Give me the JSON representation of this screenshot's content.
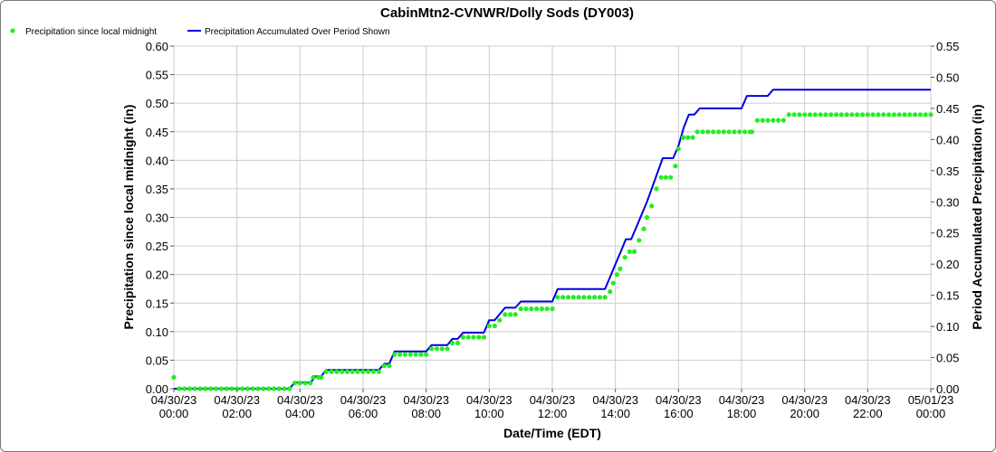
{
  "chart_data": {
    "type": "line",
    "title": "CabinMtn2-CVNWR/Dolly Sods (DY003)",
    "xlabel": "Date/Time (EDT)",
    "ylabel_left": "Precipitation since local midnight (in)",
    "ylabel_right": "Period Accumulated Precipitation (in)",
    "x_range_hours": [
      0,
      24
    ],
    "ylim_left": [
      0,
      0.6
    ],
    "ylim_right": [
      0,
      0.55
    ],
    "grid": true,
    "legend_position": "top-left",
    "x_ticks": [
      {
        "hour": 0,
        "date": "04/30/23",
        "time": "00:00"
      },
      {
        "hour": 2,
        "date": "04/30/23",
        "time": "02:00"
      },
      {
        "hour": 4,
        "date": "04/30/23",
        "time": "04:00"
      },
      {
        "hour": 6,
        "date": "04/30/23",
        "time": "06:00"
      },
      {
        "hour": 8,
        "date": "04/30/23",
        "time": "08:00"
      },
      {
        "hour": 10,
        "date": "04/30/23",
        "time": "10:00"
      },
      {
        "hour": 12,
        "date": "04/30/23",
        "time": "12:00"
      },
      {
        "hour": 14,
        "date": "04/30/23",
        "time": "14:00"
      },
      {
        "hour": 16,
        "date": "04/30/23",
        "time": "16:00"
      },
      {
        "hour": 18,
        "date": "04/30/23",
        "time": "18:00"
      },
      {
        "hour": 20,
        "date": "04/30/23",
        "time": "20:00"
      },
      {
        "hour": 22,
        "date": "04/30/23",
        "time": "22:00"
      },
      {
        "hour": 24,
        "date": "05/01/23",
        "time": "00:00"
      }
    ],
    "y_ticks_left": [
      "0.00",
      "0.05",
      "0.10",
      "0.15",
      "0.20",
      "0.25",
      "0.30",
      "0.35",
      "0.40",
      "0.45",
      "0.50",
      "0.55",
      "0.60"
    ],
    "y_ticks_right": [
      "0.00",
      "0.05",
      "0.10",
      "0.15",
      "0.20",
      "0.25",
      "0.30",
      "0.35",
      "0.40",
      "0.45",
      "0.50",
      "0.55"
    ],
    "series": [
      {
        "name": "Precipitation since local midnight",
        "kind": "scatter",
        "axis": "left",
        "color": "#22ee22",
        "points": [
          [
            0.0,
            0.02
          ],
          [
            0.17,
            0.0
          ],
          [
            3.67,
            0.0
          ],
          [
            3.83,
            0.01
          ],
          [
            4.33,
            0.01
          ],
          [
            4.42,
            0.02
          ],
          [
            4.67,
            0.02
          ],
          [
            4.83,
            0.03
          ],
          [
            6.5,
            0.03
          ],
          [
            6.67,
            0.04
          ],
          [
            6.83,
            0.04
          ],
          [
            7.0,
            0.06
          ],
          [
            8.0,
            0.06
          ],
          [
            8.17,
            0.07
          ],
          [
            8.67,
            0.07
          ],
          [
            8.83,
            0.08
          ],
          [
            9.0,
            0.08
          ],
          [
            9.17,
            0.09
          ],
          [
            9.83,
            0.09
          ],
          [
            10.0,
            0.11
          ],
          [
            10.17,
            0.11
          ],
          [
            10.33,
            0.12
          ],
          [
            10.5,
            0.13
          ],
          [
            10.83,
            0.13
          ],
          [
            11.0,
            0.14
          ],
          [
            12.0,
            0.14
          ],
          [
            12.17,
            0.16
          ],
          [
            13.67,
            0.16
          ],
          [
            13.83,
            0.17
          ],
          [
            13.93,
            0.185
          ],
          [
            14.05,
            0.2
          ],
          [
            14.15,
            0.21
          ],
          [
            14.3,
            0.23
          ],
          [
            14.45,
            0.24
          ],
          [
            14.6,
            0.24
          ],
          [
            14.75,
            0.26
          ],
          [
            14.9,
            0.28
          ],
          [
            15.0,
            0.3
          ],
          [
            15.15,
            0.32
          ],
          [
            15.3,
            0.35
          ],
          [
            15.45,
            0.37
          ],
          [
            15.6,
            0.37
          ],
          [
            15.75,
            0.37
          ],
          [
            15.9,
            0.39
          ],
          [
            16.0,
            0.42
          ],
          [
            16.15,
            0.44
          ],
          [
            16.3,
            0.44
          ],
          [
            16.45,
            0.44
          ],
          [
            16.6,
            0.45
          ],
          [
            18.33,
            0.45
          ],
          [
            18.5,
            0.47
          ],
          [
            19.33,
            0.47
          ],
          [
            19.5,
            0.48
          ],
          [
            24.0,
            0.48
          ]
        ]
      },
      {
        "name": "Precipitation Accumulated Over Period Shown",
        "kind": "line",
        "axis": "right",
        "color": "#0000dd",
        "points": [
          [
            0.0,
            0.0
          ],
          [
            3.67,
            0.0
          ],
          [
            3.83,
            0.01
          ],
          [
            4.33,
            0.01
          ],
          [
            4.5,
            0.02
          ],
          [
            4.67,
            0.02
          ],
          [
            4.83,
            0.03
          ],
          [
            6.5,
            0.03
          ],
          [
            6.67,
            0.04
          ],
          [
            6.83,
            0.04
          ],
          [
            7.0,
            0.06
          ],
          [
            8.0,
            0.06
          ],
          [
            8.17,
            0.07
          ],
          [
            8.67,
            0.07
          ],
          [
            8.83,
            0.08
          ],
          [
            9.0,
            0.08
          ],
          [
            9.17,
            0.09
          ],
          [
            9.83,
            0.09
          ],
          [
            10.0,
            0.11
          ],
          [
            10.17,
            0.11
          ],
          [
            10.5,
            0.13
          ],
          [
            10.83,
            0.13
          ],
          [
            11.0,
            0.14
          ],
          [
            12.0,
            0.14
          ],
          [
            12.17,
            0.16
          ],
          [
            13.67,
            0.16
          ],
          [
            14.0,
            0.2
          ],
          [
            14.17,
            0.22
          ],
          [
            14.33,
            0.24
          ],
          [
            14.5,
            0.24
          ],
          [
            14.67,
            0.26
          ],
          [
            15.0,
            0.3
          ],
          [
            15.5,
            0.37
          ],
          [
            15.83,
            0.37
          ],
          [
            16.0,
            0.39
          ],
          [
            16.17,
            0.42
          ],
          [
            16.33,
            0.44
          ],
          [
            16.5,
            0.44
          ],
          [
            16.67,
            0.45
          ],
          [
            18.0,
            0.45
          ],
          [
            18.17,
            0.47
          ],
          [
            18.83,
            0.47
          ],
          [
            19.0,
            0.48
          ],
          [
            24.0,
            0.48
          ]
        ]
      }
    ]
  }
}
